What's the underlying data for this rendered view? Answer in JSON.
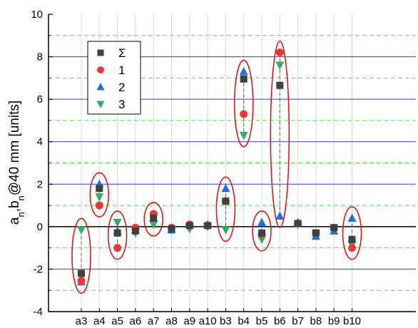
{
  "chart_data": {
    "type": "scatter",
    "ylabel_html": "a<sub>n</sub>,b<sub>n</sub>@40 mm [units]",
    "ylabel_parts": {
      "a": "a",
      "n1": "n",
      "mid": ",b",
      "n2": "n",
      "rest": "@40 mm [units]"
    },
    "ylim": [
      -4,
      10
    ],
    "yticks": [
      "10",
      "8",
      "6",
      "4",
      "2",
      "0",
      "-2",
      "-4"
    ],
    "ytick_values": [
      10,
      8,
      6,
      4,
      2,
      0,
      -2,
      -4
    ],
    "categories": [
      "a3",
      "a4",
      "a5",
      "a6",
      "a7",
      "a8",
      "a9",
      "a10",
      "b3",
      "b4",
      "b5",
      "b6",
      "b7",
      "b8",
      "b9",
      "b10"
    ],
    "grid": "horizontal major blue, minor green dashed, vertical light gray",
    "legend_position": "top-left",
    "series": [
      {
        "name": "Σ",
        "marker": "square",
        "color": "#404040",
        "values": [
          -2.2,
          1.8,
          -0.3,
          -0.2,
          0.4,
          -0.1,
          0.05,
          0.05,
          1.2,
          6.95,
          -0.3,
          6.65,
          0.15,
          -0.3,
          -0.05,
          -0.6
        ]
      },
      {
        "name": "1",
        "marker": "circle",
        "color": "#e8393a",
        "values": [
          -2.55,
          1.0,
          -1.0,
          -0.05,
          0.6,
          -0.05,
          0.1,
          0.05,
          1.2,
          5.3,
          -0.35,
          8.2,
          0.15,
          -0.3,
          -0.05,
          -1.0
        ]
      },
      {
        "name": "2",
        "marker": "triangle-up",
        "color": "#1f6fe0",
        "values": [
          -2.6,
          2.0,
          -0.2,
          -0.15,
          0.4,
          -0.15,
          0.1,
          0.1,
          1.8,
          7.3,
          0.2,
          0.5,
          0.2,
          -0.45,
          -0.2,
          0.4
        ]
      },
      {
        "name": "3",
        "marker": "triangle-down",
        "color": "#2fae5e",
        "values": [
          -0.15,
          1.4,
          0.2,
          -0.3,
          0.1,
          -0.15,
          -0.1,
          0.0,
          -0.15,
          4.3,
          -0.6,
          7.6,
          0.1,
          -0.35,
          -0.1,
          -0.85
        ]
      }
    ],
    "highlight_ellipses": [
      "a3",
      "a4",
      "a5",
      "a7",
      "b3",
      "b4",
      "b5",
      "b6",
      "b10"
    ],
    "colors": {
      "ellipse": "#e01818",
      "major_grid": "#3a3ad8",
      "minor_grid": "#55dd55",
      "vgrid": "#d8d8d8",
      "zero_line": "#000000",
      "connector": "#606060"
    }
  }
}
